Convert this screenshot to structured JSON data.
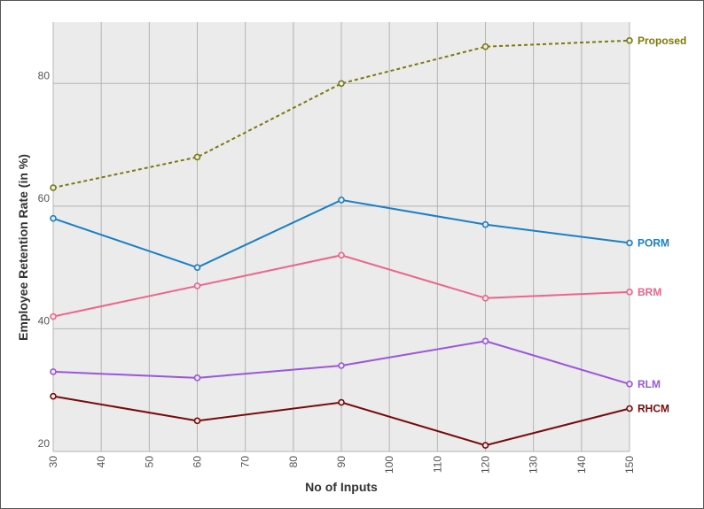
{
  "chart_data": {
    "type": "line",
    "xlabel": "No of Inputs",
    "ylabel": "Employee Retention Rate (in %)",
    "x": [
      30,
      60,
      90,
      120,
      150
    ],
    "xticks": [
      30,
      40,
      50,
      60,
      70,
      80,
      90,
      100,
      110,
      120,
      130,
      140,
      150
    ],
    "yticks": [
      20,
      40,
      60,
      80
    ],
    "xlim": [
      30,
      150
    ],
    "ylim": [
      20,
      90
    ],
    "grid": true,
    "legend": "inline labels at line ends",
    "series": [
      {
        "name": "Proposed",
        "color": "#7a7a10",
        "dashed": true,
        "values": [
          63,
          68,
          80,
          86,
          87
        ]
      },
      {
        "name": "PORM",
        "color": "#1a7fc8",
        "dashed": false,
        "values": [
          58,
          50,
          61,
          57,
          54
        ]
      },
      {
        "name": "BRM",
        "color": "#f0648a",
        "dashed": false,
        "values": [
          42,
          47,
          52,
          45,
          46
        ]
      },
      {
        "name": "RLM",
        "color": "#9b55e0",
        "dashed": false,
        "values": [
          33,
          32,
          34,
          38,
          31
        ]
      },
      {
        "name": "RHCM",
        "color": "#7a0a0a",
        "dashed": false,
        "values": [
          29,
          25,
          28,
          21,
          27
        ]
      }
    ]
  }
}
